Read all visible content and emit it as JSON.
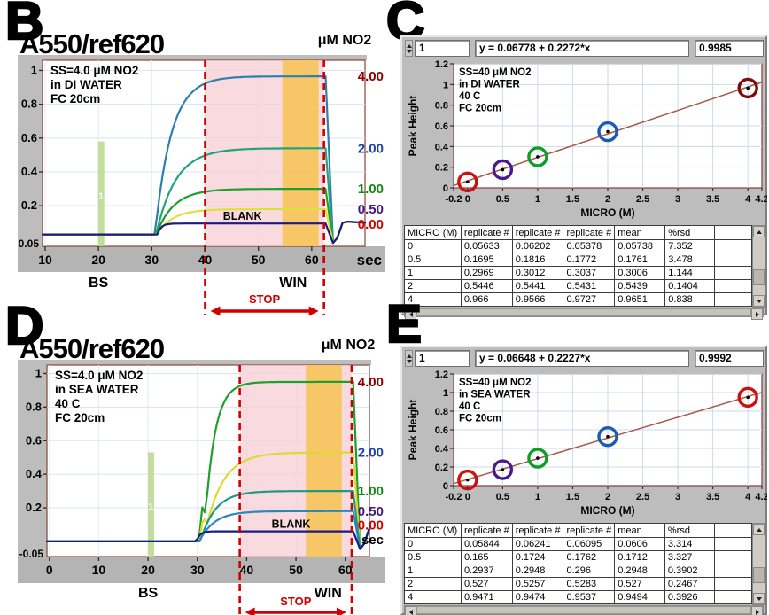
{
  "figure": {
    "letters": [
      "B",
      "C",
      "D",
      "E"
    ]
  },
  "chart_data": [
    {
      "panel": "B",
      "type": "line",
      "title": "A550/ref620",
      "annotation_lines": [
        "SS=4.0 μM NO2",
        "in DI WATER",
        "FC 20cm"
      ],
      "right_axis_title": "μM NO2",
      "x_unit": "sec",
      "x_ticks": [
        10,
        20,
        30,
        40,
        50,
        60
      ],
      "y_tick_values": [
        1,
        0.8,
        0.6,
        0.4,
        0.2
      ],
      "y_tick_labels": [
        "1",
        "0.8",
        "0.6",
        "0.4",
        "0.2"
      ],
      "y_min_label": "0.05",
      "x_range": [
        9.5,
        70
      ],
      "baseline": 0.03,
      "tail": 0.1,
      "dip": -0.02,
      "bs_label": {
        "text": "BS",
        "t": 20
      },
      "win_label": {
        "text": "WIN",
        "t": 56.5
      },
      "stop_window": {
        "start": 40,
        "end": 62.3,
        "label": "STOP"
      },
      "integration_window": {
        "start": 54.5,
        "end": 61.3
      },
      "injection_marker": {
        "t": 20.5,
        "top": 0.58,
        "label": "1"
      },
      "blank_label": {
        "text": "BLANK",
        "t": 47
      },
      "series": [
        {
          "conc_label": "4.00",
          "label_color": "#8b0000",
          "color": "#2e7fae",
          "plateau": 0.965,
          "rise_start": 30.6,
          "k": 0.33
        },
        {
          "conc_label": "2.00",
          "label_color": "#1e43ae",
          "color": "#21a47c",
          "plateau": 0.54,
          "rise_start": 30.8,
          "k": 0.27
        },
        {
          "conc_label": "1.00",
          "label_color": "#118a11",
          "color": "#1f9e2e",
          "plateau": 0.3,
          "rise_start": 30.8,
          "k": 0.3
        },
        {
          "conc_label": "0.50",
          "label_color": "#46187e",
          "color": "#e0e03c",
          "plateau": 0.18,
          "rise_start": 30.9,
          "k": 0.33
        },
        {
          "conc_label": "0.00",
          "label_color": "#d00000",
          "color": "#1a1a80",
          "plateau": 0.095,
          "rise_start": 31.0,
          "k": 1.4,
          "is_blank": true
        }
      ]
    },
    {
      "panel": "C",
      "type": "scatter",
      "index_value": "1",
      "equation": "y = 0.06778 + 0.2272*x",
      "r2": "0.9985",
      "fit": {
        "intercept": 0.06778,
        "slope": 0.2272
      },
      "xlabel": "MICRO (M)",
      "ylabel": "Peak Height",
      "annotation_lines": [
        "SS=40 μM NO2",
        "in DI WATER",
        "40 C",
        "FC 20cm"
      ],
      "x_ticks": [
        -0.2,
        0,
        0.5,
        1,
        1.5,
        2,
        2.5,
        3,
        3.5,
        4,
        4.2
      ],
      "y_ticks": [
        0,
        0.2,
        0.4,
        0.6,
        0.8,
        1,
        1.2
      ],
      "x_range": [
        -0.2,
        4.2
      ],
      "y_range": [
        0,
        1.2
      ],
      "points": [
        {
          "x": 0,
          "y": 0.05738,
          "color": "#cc1111"
        },
        {
          "x": 0.5,
          "y": 0.1761,
          "color": "#4a1a8a"
        },
        {
          "x": 1,
          "y": 0.3006,
          "color": "#0f9d2a"
        },
        {
          "x": 2,
          "y": 0.5439,
          "color": "#1d5ab4"
        },
        {
          "x": 4,
          "y": 0.9651,
          "color": "#7b0c0c"
        }
      ],
      "table": {
        "headers": [
          "MICRO (M)",
          "replicate #",
          "replicate #",
          "replicate #",
          "mean",
          "%rsd",
          "",
          ""
        ],
        "rows": [
          [
            "0",
            "0.05633",
            "0.06202",
            "0.05378",
            "0.05738",
            "7.352",
            "",
            ""
          ],
          [
            "0.5",
            "0.1695",
            "0.1816",
            "0.1772",
            "0.1761",
            "3.478",
            "",
            ""
          ],
          [
            "1",
            "0.2969",
            "0.3012",
            "0.3037",
            "0.3006",
            "1.144",
            "",
            ""
          ],
          [
            "2",
            "0.5446",
            "0.5441",
            "0.5431",
            "0.5439",
            "0.1404",
            "",
            ""
          ],
          [
            "4",
            "0.966",
            "0.9566",
            "0.9727",
            "0.9651",
            "0.838",
            "",
            ""
          ]
        ]
      }
    },
    {
      "panel": "D",
      "type": "line",
      "title": "A550/ref620",
      "annotation_lines": [
        "SS=4.0 μM NO2",
        "in SEA WATER",
        "40 C",
        "FC 20cm"
      ],
      "right_axis_title": "μM NO2",
      "x_unit": "sec",
      "x_ticks": [
        0,
        10,
        20,
        30,
        40,
        50,
        60
      ],
      "y_tick_values": [
        1,
        0.8,
        0.6,
        0.4,
        0.2
      ],
      "y_tick_labels": [
        "1",
        "0.8",
        "0.6",
        "0.4",
        "0.2"
      ],
      "y_min_label": "-0.05",
      "x_range": [
        -0.5,
        64.9
      ],
      "baseline": 0.0,
      "tail": 0.07,
      "dip": -0.045,
      "bs_label": {
        "text": "BS",
        "t": 20
      },
      "win_label": {
        "text": "WIN",
        "t": 56.5
      },
      "stop_window": {
        "start": 38.6,
        "end": 61.3,
        "label": "STOP"
      },
      "integration_window": {
        "start": 52,
        "end": 59.3
      },
      "injection_marker": {
        "t": 20.6,
        "top": 0.53,
        "label": "1"
      },
      "blank_label": {
        "text": "BLANK",
        "t": 49
      },
      "series": [
        {
          "conc_label": "4.00",
          "label_color": "#8b0000",
          "color": "#1f9e2e",
          "plateau": 0.95,
          "rise_start": 31.3,
          "k": 0.5,
          "spike": {
            "t": 31.2,
            "v": 0.26
          }
        },
        {
          "conc_label": "2.00",
          "label_color": "#1e43ae",
          "color": "#e0d832",
          "plateau": 0.53,
          "rise_start": 31.2,
          "k": 0.28,
          "spike": {
            "t": 31.3,
            "v": 0.17
          }
        },
        {
          "conc_label": "1.00",
          "label_color": "#118a11",
          "color": "#1b9a86",
          "plateau": 0.3,
          "rise_start": 30.6,
          "k": 0.33
        },
        {
          "conc_label": "0.50",
          "label_color": "#46187e",
          "color": "#2e86b8",
          "plateau": 0.18,
          "rise_start": 30.4,
          "k": 0.33
        },
        {
          "conc_label": "0.00",
          "label_color": "#d00000",
          "color": "#1a1a80",
          "plateau": 0.06,
          "rise_start": 29.8,
          "k": 1.4,
          "is_blank": true
        }
      ]
    },
    {
      "panel": "E",
      "type": "scatter",
      "index_value": "1",
      "equation": "y = 0.06648 + 0.2227*x",
      "r2": "0.9992",
      "fit": {
        "intercept": 0.06648,
        "slope": 0.2227
      },
      "xlabel": "MICRO (M)",
      "ylabel": "Peak Height",
      "annotation_lines": [
        "SS=40 μM NO2",
        "in SEA WATER",
        "40 C",
        "FC 20cm"
      ],
      "x_ticks": [
        -0.2,
        0,
        0.5,
        1,
        1.5,
        2,
        2.5,
        3,
        3.5,
        4,
        4.2
      ],
      "y_ticks": [
        0,
        0.2,
        0.4,
        0.6,
        0.8,
        1,
        1.2
      ],
      "x_range": [
        -0.2,
        4.2
      ],
      "y_range": [
        0,
        1.2
      ],
      "points": [
        {
          "x": 0,
          "y": 0.0606,
          "color": "#cc1111"
        },
        {
          "x": 0.5,
          "y": 0.1712,
          "color": "#4a1a8a"
        },
        {
          "x": 1,
          "y": 0.2948,
          "color": "#0f9d2a"
        },
        {
          "x": 2,
          "y": 0.527,
          "color": "#1d5ab4"
        },
        {
          "x": 4,
          "y": 0.9494,
          "color": "#cc1111"
        }
      ],
      "table": {
        "headers": [
          "MICRO (M)",
          "replicate #",
          "replicate #",
          "replicate #",
          "mean",
          "%rsd",
          "",
          ""
        ],
        "rows": [
          [
            "0",
            "0.05844",
            "0.06241",
            "0.06095",
            "0.0606",
            "3.314",
            "",
            ""
          ],
          [
            "0.5",
            "0.165",
            "0.1724",
            "0.1762",
            "0.1712",
            "3.327",
            "",
            ""
          ],
          [
            "1",
            "0.2937",
            "0.2948",
            "0.296",
            "0.2948",
            "0.3902",
            "",
            ""
          ],
          [
            "2",
            "0.527",
            "0.5257",
            "0.5283",
            "0.527",
            "0.2467",
            "",
            ""
          ],
          [
            "4",
            "0.9471",
            "0.9474",
            "0.9537",
            "0.9494",
            "0.3926",
            "",
            ""
          ]
        ]
      }
    }
  ],
  "colors": {
    "stop_red": "#d10000",
    "window_pink": "#f7cdd3",
    "integration_orange": "#f6c45c",
    "event_bar_green": "#b9d98e",
    "fit_line": "#a85a47",
    "panel_grey": "#bdbdbd",
    "axis_strip_grey": "#b4b4b4"
  }
}
